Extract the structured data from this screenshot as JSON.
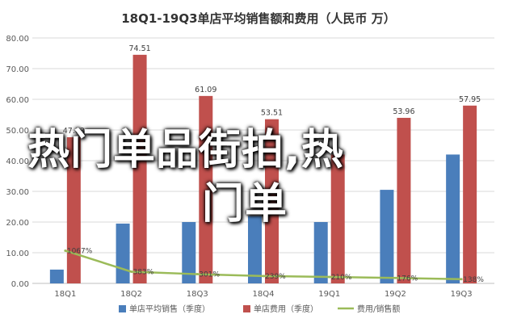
{
  "chart_data": {
    "type": "bar",
    "title": "18Q1-19Q3单店平均销售额和费用（人民币 万）",
    "categories": [
      "18Q1",
      "18Q2",
      "18Q3",
      "18Q4",
      "19Q1",
      "19Q2",
      "19Q3"
    ],
    "ylim": [
      0,
      80
    ],
    "yticks": [
      "0.00",
      "10.00",
      "20.00",
      "30.00",
      "40.00",
      "50.00",
      "60.00",
      "70.00",
      "80.00"
    ],
    "grid": true,
    "legend_position": "bottom",
    "series": [
      {
        "name": "单店平均销售（季度）",
        "kind": "bar",
        "color": "#4a7ebb",
        "values": [
          4.5,
          19.5,
          20.0,
          22.0,
          20.0,
          30.5,
          42.0
        ],
        "labels": [
          "",
          "",
          "",
          "",
          "",
          "",
          ""
        ]
      },
      {
        "name": "单店费用（季度）",
        "kind": "bar",
        "color": "#c0504d",
        "values": [
          47.63,
          74.51,
          61.09,
          53.51,
          42.0,
          53.96,
          57.95
        ],
        "labels": [
          "47.63",
          "74.51",
          "61.09",
          "53.51",
          "",
          "53.96",
          "57.95"
        ]
      },
      {
        "name": "费用/销售额",
        "kind": "line",
        "color": "#9bbb59",
        "values": [
          10.67,
          3.83,
          3.01,
          2.39,
          2.1,
          1.76,
          1.38
        ],
        "labels": [
          "1067%",
          "383%",
          "301%",
          "239%",
          "210%",
          "176%",
          "138%"
        ]
      }
    ]
  },
  "overlay": {
    "line1": "热门单品街拍,热",
    "line2": "门单"
  }
}
